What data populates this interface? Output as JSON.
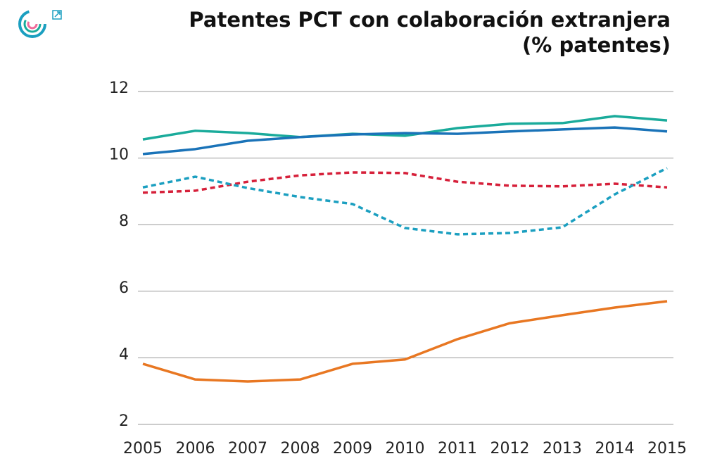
{
  "chart_data": {
    "type": "line",
    "title": "Patentes PCT con colaboración extranjera",
    "subtitle": "(% patentes)",
    "categories": [
      "2005",
      "2006",
      "2007",
      "2008",
      "2009",
      "2010",
      "2011",
      "2012",
      "2013",
      "2014",
      "2015"
    ],
    "series": [
      {
        "color": "#1aab9b",
        "dashed": false,
        "values": [
          10.56,
          10.82,
          10.75,
          10.63,
          10.73,
          10.67,
          10.9,
          11.03,
          11.05,
          11.26,
          11.13
        ]
      },
      {
        "color": "#1a73b8",
        "dashed": false,
        "values": [
          10.12,
          10.27,
          10.52,
          10.63,
          10.71,
          10.75,
          10.73,
          10.8,
          10.86,
          10.92,
          10.8
        ]
      },
      {
        "color": "#d6203a",
        "dashed": true,
        "values": [
          8.96,
          9.02,
          9.29,
          9.48,
          9.57,
          9.55,
          9.29,
          9.17,
          9.15,
          9.23,
          9.12
        ]
      },
      {
        "color": "#1b9fc0",
        "dashed": true,
        "values": [
          9.12,
          9.44,
          9.1,
          8.83,
          8.62,
          7.9,
          7.71,
          7.75,
          7.92,
          8.91,
          9.7
        ]
      },
      {
        "color": "#e87722",
        "dashed": false,
        "values": [
          3.82,
          3.35,
          3.29,
          3.35,
          3.82,
          3.95,
          4.56,
          5.04,
          5.28,
          5.51,
          5.7
        ]
      }
    ],
    "ylim": [
      2,
      12
    ],
    "yticks": [
      2,
      4,
      6,
      8,
      10,
      12
    ],
    "grid": true
  }
}
